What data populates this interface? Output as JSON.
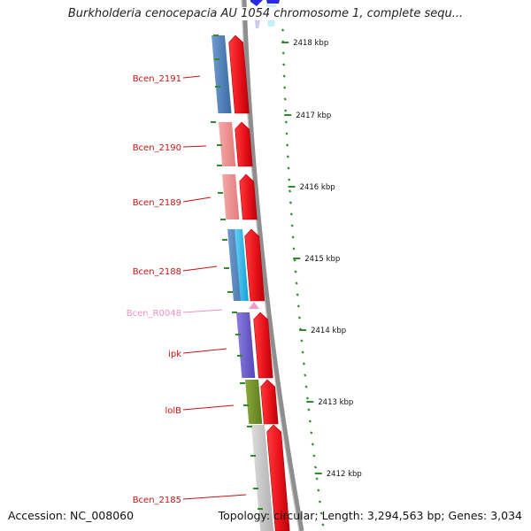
{
  "title": "Burkholderia cenocepacia AU 1054 chromosome 1, complete sequ...",
  "accession": "Accession: NC_008060",
  "topology": "Topology: circular; Length: 3,294,563 bp; Genes: 3,034",
  "scale_ticks": [
    {
      "label": "2418 kbp",
      "kbp": 2418
    },
    {
      "label": "2417 kbp",
      "kbp": 2417
    },
    {
      "label": "2416 kbp",
      "kbp": 2416
    },
    {
      "label": "2415 kbp",
      "kbp": 2415
    },
    {
      "label": "2414 kbp",
      "kbp": 2414
    },
    {
      "label": "2413 kbp",
      "kbp": 2413
    },
    {
      "label": "2412 kbp",
      "kbp": 2412
    }
  ],
  "genes": [
    {
      "name": "Bcen_2191",
      "label_color": "#cc1111",
      "feature_color": "#4f7fb5"
    },
    {
      "name": "Bcen_2190",
      "label_color": "#cc1111",
      "feature_color": "#ef8f8f"
    },
    {
      "name": "Bcen_2189",
      "label_color": "#cc1111",
      "feature_color": "#ef8f8f"
    },
    {
      "name": "Bcen_2188",
      "label_color": "#cc1111",
      "feature_color": "#4f7fb5"
    },
    {
      "name": "Bcen_R0048",
      "label_color": "#f08fbf",
      "feature_color": "#f49ac7"
    },
    {
      "name": "ipk",
      "label_color": "#cc1111",
      "feature_color": "#6f5ec8"
    },
    {
      "name": "lolB",
      "label_color": "#cc1111",
      "feature_color": "#6f8f2a"
    },
    {
      "name": "Bcen_2185",
      "label_color": "#cc1111",
      "feature_color": "#c8c8c8"
    }
  ],
  "colors": {
    "cds_strand": "#e8121a",
    "backbone": "#8e8e8e",
    "scale_tick": "#2e8b2e",
    "cyan_feature": "#25b4e8",
    "top_blue": "#2a2ae0"
  }
}
